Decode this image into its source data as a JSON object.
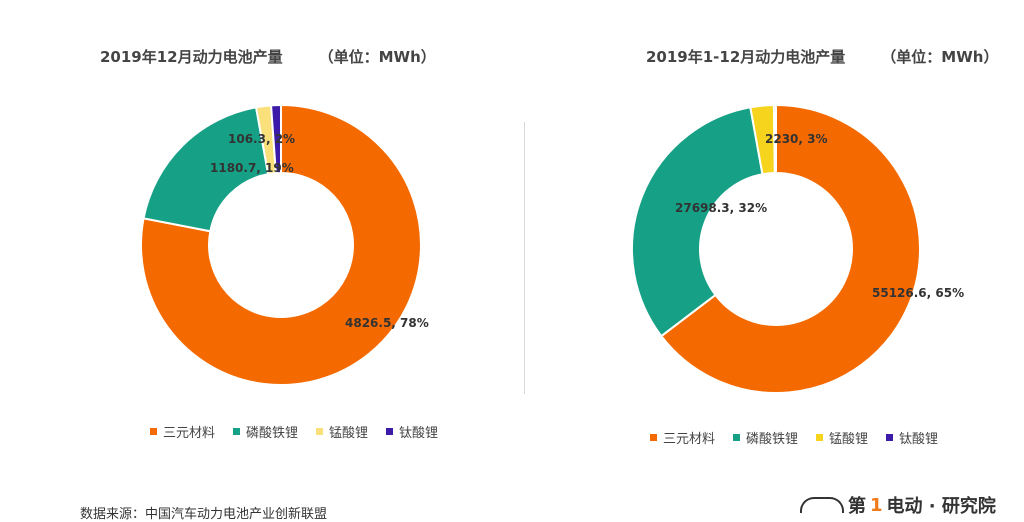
{
  "charts": [
    {
      "title": "2019年12月动力电池产量",
      "unit": "（单位：MWh）",
      "legend": [
        "三元材料",
        "磷酸铁锂",
        "锰酸锂",
        "钛酸锂"
      ]
    },
    {
      "title": "2019年1-12月动力电池产量",
      "unit": "（单位：MWh）",
      "legend": [
        "三元材料",
        "磷酸铁锂",
        "锰酸锂",
        "钛酸锂"
      ]
    }
  ],
  "chart_data": [
    {
      "type": "pie",
      "style": "donut",
      "title": "2019年12月动力电池产量",
      "unit": "MWh",
      "series": [
        {
          "name": "三元材料",
          "value": 4826.5,
          "label": "4826.5, 78%",
          "color": "#f46a00"
        },
        {
          "name": "磷酸铁锂",
          "value": 1180.7,
          "label": "1180.7, 19%",
          "color": "#16a085"
        },
        {
          "name": "锰酸锂",
          "value": 106.3,
          "label": "106.3, 2%",
          "color": "#f9e07a"
        },
        {
          "name": "钛酸锂",
          "value": 70,
          "label": "",
          "color": "#3b1ba8"
        }
      ],
      "legend_position": "bottom"
    },
    {
      "type": "pie",
      "style": "donut",
      "title": "2019年1-12月动力电池产量",
      "unit": "MWh",
      "series": [
        {
          "name": "三元材料",
          "value": 55126.6,
          "label": "55126.6, 65%",
          "color": "#f46a00"
        },
        {
          "name": "磷酸铁锂",
          "value": 27698.3,
          "label": "27698.3, 32%",
          "color": "#16a085"
        },
        {
          "name": "锰酸锂",
          "value": 2230,
          "label": "2230, 3%",
          "color": "#f6d31d"
        },
        {
          "name": "钛酸锂",
          "value": 200,
          "label": "",
          "color": "#3b1ba8"
        }
      ],
      "legend_position": "bottom"
    }
  ],
  "footer": {
    "source": "数据来源：中国汽车动力电池产业创新联盟",
    "logo_part1": "第",
    "logo_accent": "1",
    "logo_part2": "电动 · 研究院"
  }
}
